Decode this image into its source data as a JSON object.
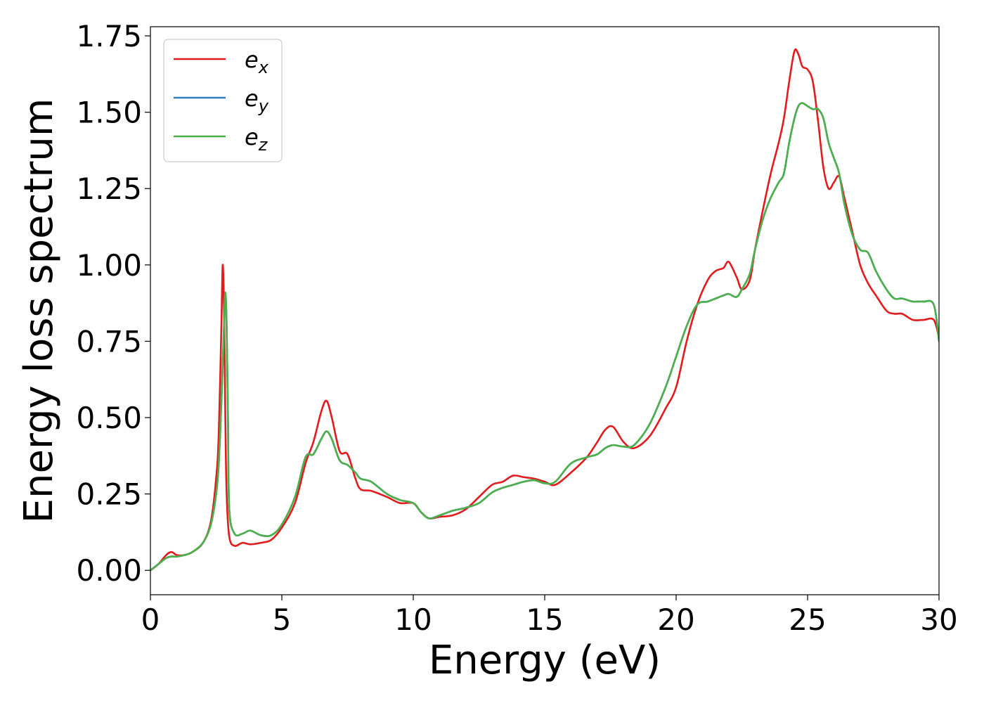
{
  "chart_data": {
    "type": "line",
    "title": "",
    "xlabel": "Energy (eV)",
    "ylabel": "Energy loss spectrum",
    "xlim": [
      0,
      30
    ],
    "ylim": [
      -0.08,
      1.78
    ],
    "xticks": [
      0,
      5,
      10,
      15,
      20,
      25,
      30
    ],
    "xtick_labels": [
      "0",
      "5",
      "10",
      "15",
      "20",
      "25",
      "30"
    ],
    "yticks": [
      0.0,
      0.25,
      0.5,
      0.75,
      1.0,
      1.25,
      1.5,
      1.75
    ],
    "ytick_labels": [
      "0.00",
      "0.25",
      "0.50",
      "0.75",
      "1.00",
      "1.25",
      "1.50",
      "1.75"
    ],
    "grid": false,
    "legend_position": "top-left",
    "series": [
      {
        "name": "e_x",
        "label_base": "e",
        "label_sub": "x",
        "color": "#e41a1c",
        "x": [
          0,
          0.3,
          0.6,
          0.8,
          1.0,
          1.3,
          1.6,
          2.0,
          2.3,
          2.5,
          2.6,
          2.7,
          2.75,
          2.8,
          2.85,
          2.9,
          3.0,
          3.2,
          3.5,
          3.8,
          4.2,
          4.6,
          5.0,
          5.5,
          5.9,
          6.2,
          6.5,
          6.7,
          6.9,
          7.2,
          7.5,
          7.8,
          8.0,
          8.4,
          9.0,
          9.5,
          10.0,
          10.3,
          10.6,
          11.0,
          11.5,
          12.0,
          12.5,
          13.0,
          13.4,
          13.8,
          14.2,
          14.6,
          15.0,
          15.4,
          16.0,
          16.6,
          17.0,
          17.3,
          17.6,
          18.0,
          18.4,
          19.0,
          19.6,
          20.0,
          20.4,
          20.8,
          21.2,
          21.5,
          21.8,
          22.0,
          22.3,
          22.5,
          22.8,
          23.0,
          23.3,
          23.6,
          23.9,
          24.1,
          24.3,
          24.5,
          24.65,
          24.8,
          25.0,
          25.2,
          25.4,
          25.6,
          25.8,
          26.0,
          26.2,
          26.4,
          26.7,
          27.0,
          27.3,
          27.6,
          28.0,
          28.3,
          28.6,
          29.0,
          29.4,
          29.8,
          30.0
        ],
        "y": [
          0.0,
          0.02,
          0.05,
          0.06,
          0.05,
          0.05,
          0.06,
          0.09,
          0.16,
          0.3,
          0.45,
          0.8,
          1.0,
          0.85,
          0.5,
          0.25,
          0.11,
          0.08,
          0.09,
          0.085,
          0.09,
          0.1,
          0.14,
          0.22,
          0.35,
          0.42,
          0.52,
          0.555,
          0.5,
          0.39,
          0.38,
          0.3,
          0.265,
          0.26,
          0.24,
          0.22,
          0.22,
          0.19,
          0.17,
          0.175,
          0.18,
          0.2,
          0.24,
          0.28,
          0.29,
          0.31,
          0.305,
          0.3,
          0.29,
          0.28,
          0.32,
          0.37,
          0.42,
          0.46,
          0.47,
          0.42,
          0.4,
          0.44,
          0.53,
          0.6,
          0.75,
          0.87,
          0.95,
          0.98,
          0.99,
          1.01,
          0.96,
          0.92,
          0.95,
          1.05,
          1.18,
          1.3,
          1.4,
          1.48,
          1.6,
          1.7,
          1.69,
          1.65,
          1.64,
          1.6,
          1.47,
          1.32,
          1.25,
          1.27,
          1.29,
          1.22,
          1.11,
          1.0,
          0.94,
          0.9,
          0.85,
          0.84,
          0.84,
          0.82,
          0.82,
          0.82,
          0.76
        ]
      },
      {
        "name": "e_y",
        "label_base": "e",
        "label_sub": "y",
        "color": "#377eb8",
        "x": [
          0,
          0.3,
          0.6,
          0.8,
          1.0,
          1.3,
          1.6,
          2.0,
          2.3,
          2.5,
          2.6,
          2.7,
          2.8,
          2.85,
          2.9,
          2.95,
          3.0,
          3.2,
          3.5,
          3.8,
          4.2,
          4.6,
          5.0,
          5.5,
          5.9,
          6.2,
          6.5,
          6.7,
          6.9,
          7.2,
          7.5,
          7.8,
          8.0,
          8.4,
          9.0,
          9.5,
          10.0,
          10.3,
          10.6,
          11.0,
          11.5,
          12.0,
          12.5,
          13.0,
          13.4,
          13.8,
          14.2,
          14.6,
          15.0,
          15.4,
          16.0,
          16.6,
          17.0,
          17.3,
          17.6,
          18.0,
          18.4,
          19.0,
          19.6,
          20.0,
          20.4,
          20.8,
          21.2,
          21.5,
          21.8,
          22.0,
          22.3,
          22.5,
          22.8,
          23.0,
          23.3,
          23.6,
          23.9,
          24.1,
          24.3,
          24.5,
          24.65,
          24.8,
          25.0,
          25.2,
          25.4,
          25.6,
          25.8,
          26.0,
          26.2,
          26.4,
          26.7,
          27.0,
          27.3,
          27.6,
          28.0,
          28.3,
          28.6,
          29.0,
          29.4,
          29.8,
          30.0
        ],
        "y": [
          0.0,
          0.02,
          0.04,
          0.045,
          0.045,
          0.05,
          0.06,
          0.09,
          0.15,
          0.25,
          0.35,
          0.55,
          0.8,
          0.9,
          0.8,
          0.5,
          0.2,
          0.12,
          0.12,
          0.13,
          0.115,
          0.115,
          0.15,
          0.24,
          0.37,
          0.38,
          0.43,
          0.455,
          0.43,
          0.36,
          0.345,
          0.32,
          0.3,
          0.29,
          0.25,
          0.23,
          0.22,
          0.19,
          0.17,
          0.18,
          0.195,
          0.205,
          0.22,
          0.255,
          0.27,
          0.28,
          0.29,
          0.295,
          0.285,
          0.29,
          0.35,
          0.37,
          0.38,
          0.4,
          0.41,
          0.405,
          0.41,
          0.48,
          0.6,
          0.7,
          0.8,
          0.87,
          0.88,
          0.89,
          0.9,
          0.905,
          0.895,
          0.92,
          0.97,
          1.05,
          1.15,
          1.22,
          1.27,
          1.3,
          1.4,
          1.48,
          1.52,
          1.53,
          1.52,
          1.51,
          1.51,
          1.48,
          1.4,
          1.35,
          1.3,
          1.2,
          1.1,
          1.05,
          1.04,
          0.98,
          0.92,
          0.89,
          0.89,
          0.88,
          0.88,
          0.87,
          0.75
        ]
      },
      {
        "name": "e_z",
        "label_base": "e",
        "label_sub": "z",
        "color": "#4daf4a",
        "x": [
          0,
          0.3,
          0.6,
          0.8,
          1.0,
          1.3,
          1.6,
          2.0,
          2.3,
          2.5,
          2.6,
          2.7,
          2.8,
          2.85,
          2.9,
          2.95,
          3.0,
          3.2,
          3.5,
          3.8,
          4.2,
          4.6,
          5.0,
          5.5,
          5.9,
          6.2,
          6.5,
          6.7,
          6.9,
          7.2,
          7.5,
          7.8,
          8.0,
          8.4,
          9.0,
          9.5,
          10.0,
          10.3,
          10.6,
          11.0,
          11.5,
          12.0,
          12.5,
          13.0,
          13.4,
          13.8,
          14.2,
          14.6,
          15.0,
          15.4,
          16.0,
          16.6,
          17.0,
          17.3,
          17.6,
          18.0,
          18.4,
          19.0,
          19.6,
          20.0,
          20.4,
          20.8,
          21.2,
          21.5,
          21.8,
          22.0,
          22.3,
          22.5,
          22.8,
          23.0,
          23.3,
          23.6,
          23.9,
          24.1,
          24.3,
          24.5,
          24.65,
          24.8,
          25.0,
          25.2,
          25.4,
          25.6,
          25.8,
          26.0,
          26.2,
          26.4,
          26.7,
          27.0,
          27.3,
          27.6,
          28.0,
          28.3,
          28.6,
          29.0,
          29.4,
          29.8,
          30.0
        ],
        "y": [
          0.0,
          0.02,
          0.04,
          0.045,
          0.045,
          0.05,
          0.06,
          0.09,
          0.15,
          0.25,
          0.35,
          0.55,
          0.8,
          0.91,
          0.8,
          0.5,
          0.2,
          0.12,
          0.12,
          0.13,
          0.115,
          0.115,
          0.15,
          0.24,
          0.37,
          0.38,
          0.43,
          0.455,
          0.43,
          0.36,
          0.345,
          0.32,
          0.3,
          0.29,
          0.25,
          0.23,
          0.22,
          0.19,
          0.17,
          0.18,
          0.195,
          0.205,
          0.22,
          0.255,
          0.27,
          0.28,
          0.29,
          0.295,
          0.285,
          0.29,
          0.35,
          0.37,
          0.38,
          0.4,
          0.41,
          0.405,
          0.41,
          0.48,
          0.6,
          0.7,
          0.8,
          0.87,
          0.88,
          0.89,
          0.9,
          0.905,
          0.895,
          0.92,
          0.97,
          1.05,
          1.15,
          1.22,
          1.27,
          1.3,
          1.4,
          1.48,
          1.52,
          1.53,
          1.52,
          1.51,
          1.51,
          1.48,
          1.4,
          1.35,
          1.3,
          1.2,
          1.1,
          1.05,
          1.04,
          0.98,
          0.92,
          0.89,
          0.89,
          0.88,
          0.88,
          0.87,
          0.75
        ]
      }
    ]
  }
}
